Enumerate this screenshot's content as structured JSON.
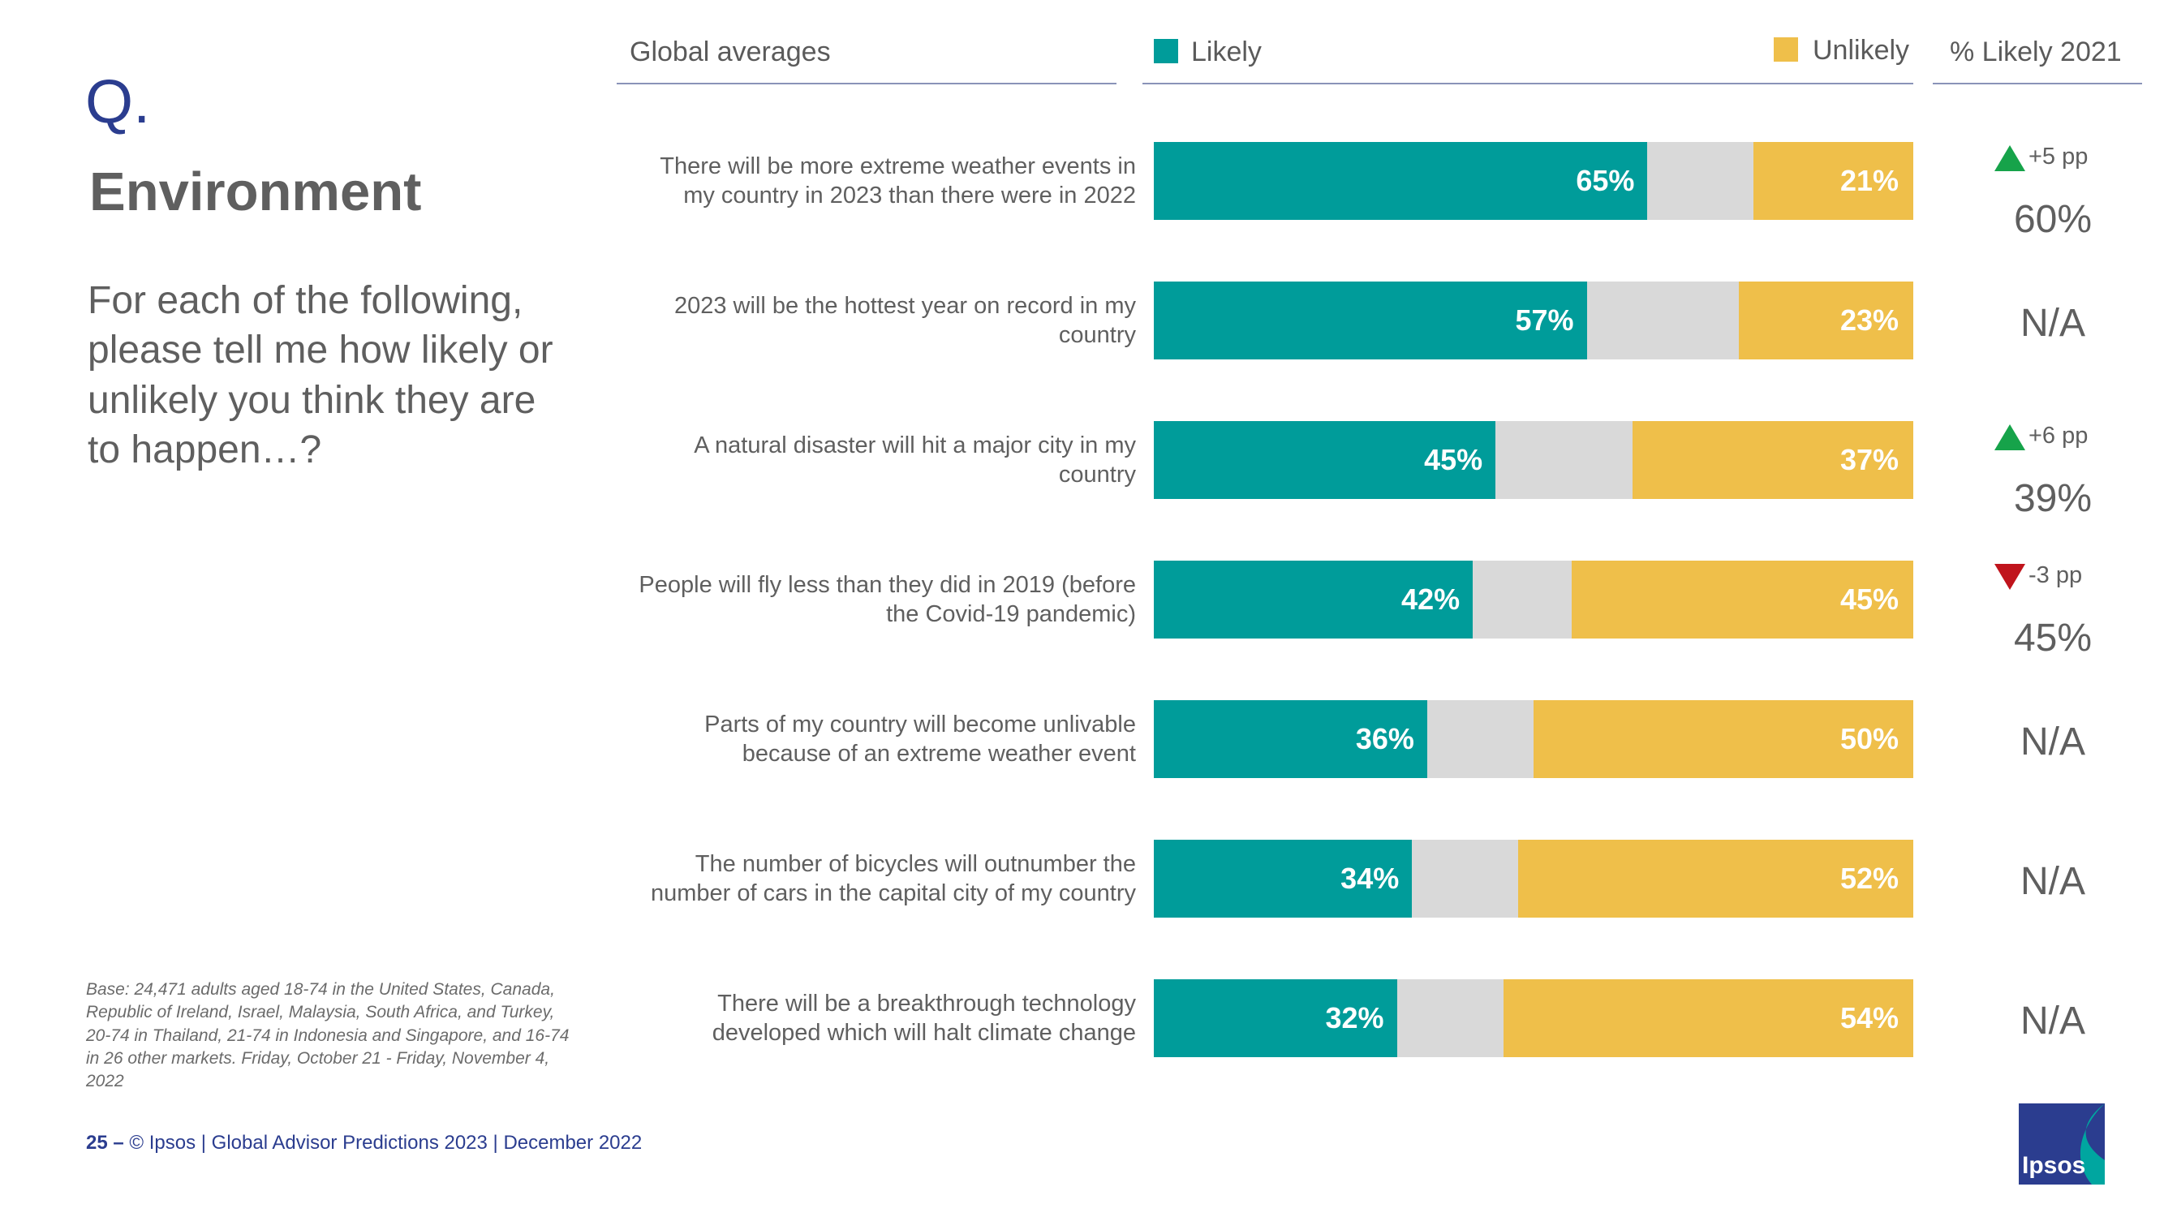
{
  "slide": {
    "q_mark": "Q.",
    "title": "Environment",
    "question": "For each of the following, please tell me how likely or unlikely you think they are to happen…?",
    "base_note": "Base: 24,471 adults aged 18-74 in the United States, Canada, Republic of Ireland, Israel, Malaysia, South Africa, and Turkey, 20-74 in Thailand, 21-74 in Indonesia and Singapore, and 16-74 in 26 other markets. Friday, October 21 -  Friday, November 4, 2022",
    "footer_page": "25 –",
    "footer_text": "© Ipsos | Global Advisor Predictions 2023 | December 2022",
    "logo_text": "Ipsos"
  },
  "headers": {
    "global": "Global averages",
    "likely": "Likely",
    "unlikely": "Unlikely",
    "pct2021": "% Likely 2021"
  },
  "colors": {
    "likely": "#009c9a",
    "neutral": "#d9d9d9",
    "unlikely": "#efbf4a",
    "up": "#16a34a",
    "down": "#c0141c",
    "brand": "#2b3d8f"
  },
  "chart_data": {
    "type": "bar",
    "orientation": "horizontal-stacked",
    "title": "Global averages",
    "legend": [
      "Likely",
      "Unlikely"
    ],
    "xlim": [
      0,
      100
    ],
    "categories": [
      "There will be more extreme weather events in my country in 2023 than there were in 2022",
      "2023 will be the hottest year on record in my country",
      "A natural disaster will hit a major city in my country",
      "People will fly less than they did in 2019 (before the Covid-19 pandemic)",
      "Parts of my country will become unlivable because of an extreme weather event",
      "The number of bicycles will outnumber the number of cars in the capital city of my country",
      "There will be a breakthrough technology developed which will halt climate change"
    ],
    "series": [
      {
        "name": "Likely",
        "values": [
          65,
          57,
          45,
          42,
          36,
          34,
          32
        ]
      },
      {
        "name": "Unlikely",
        "values": [
          21,
          23,
          37,
          45,
          50,
          52,
          54
        ]
      }
    ],
    "likely_labels": [
      "65%",
      "57%",
      "45%",
      "42%",
      "36%",
      "34%",
      "32%"
    ],
    "unlikely_labels": [
      "21%",
      "23%",
      "37%",
      "45%",
      "50%",
      "52%",
      "54%"
    ],
    "likely_2021": [
      {
        "value": "60%",
        "change": "+5 pp",
        "direction": "up"
      },
      {
        "value": "N/A",
        "change": "",
        "direction": ""
      },
      {
        "value": "39%",
        "change": "+6 pp",
        "direction": "up"
      },
      {
        "value": "45%",
        "change": "-3 pp",
        "direction": "down"
      },
      {
        "value": "N/A",
        "change": "",
        "direction": ""
      },
      {
        "value": "N/A",
        "change": "",
        "direction": ""
      },
      {
        "value": "N/A",
        "change": "",
        "direction": ""
      }
    ]
  }
}
